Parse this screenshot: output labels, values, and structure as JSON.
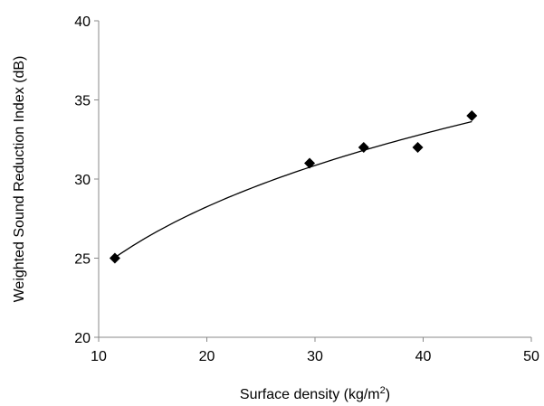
{
  "chart_data": {
    "type": "scatter",
    "title": "",
    "xlabel": "Surface density (kg/m",
    "xlabel_sup": "2",
    "xlabel_end": ")",
    "ylabel": "Weighted Sound Reduction Index (dB)",
    "xlim": [
      10,
      50
    ],
    "ylim": [
      20,
      40
    ],
    "x_ticks": [
      10,
      20,
      30,
      40,
      50
    ],
    "y_ticks": [
      20,
      25,
      30,
      35,
      40
    ],
    "x_tick_labels": [
      "10",
      "20",
      "30",
      "40",
      "50"
    ],
    "y_tick_labels": [
      "20",
      "25",
      "30",
      "35",
      "40"
    ],
    "grid": false,
    "legend": "none",
    "marker": "diamond",
    "marker_color": "#000000",
    "series": [
      {
        "x": [
          11.5,
          29.5,
          34.5,
          39.5,
          44.5
        ],
        "y": [
          25,
          31,
          32,
          32,
          34
        ]
      }
    ],
    "trendline": {
      "type": "power",
      "x_range": [
        11.5,
        44.5
      ]
    }
  }
}
